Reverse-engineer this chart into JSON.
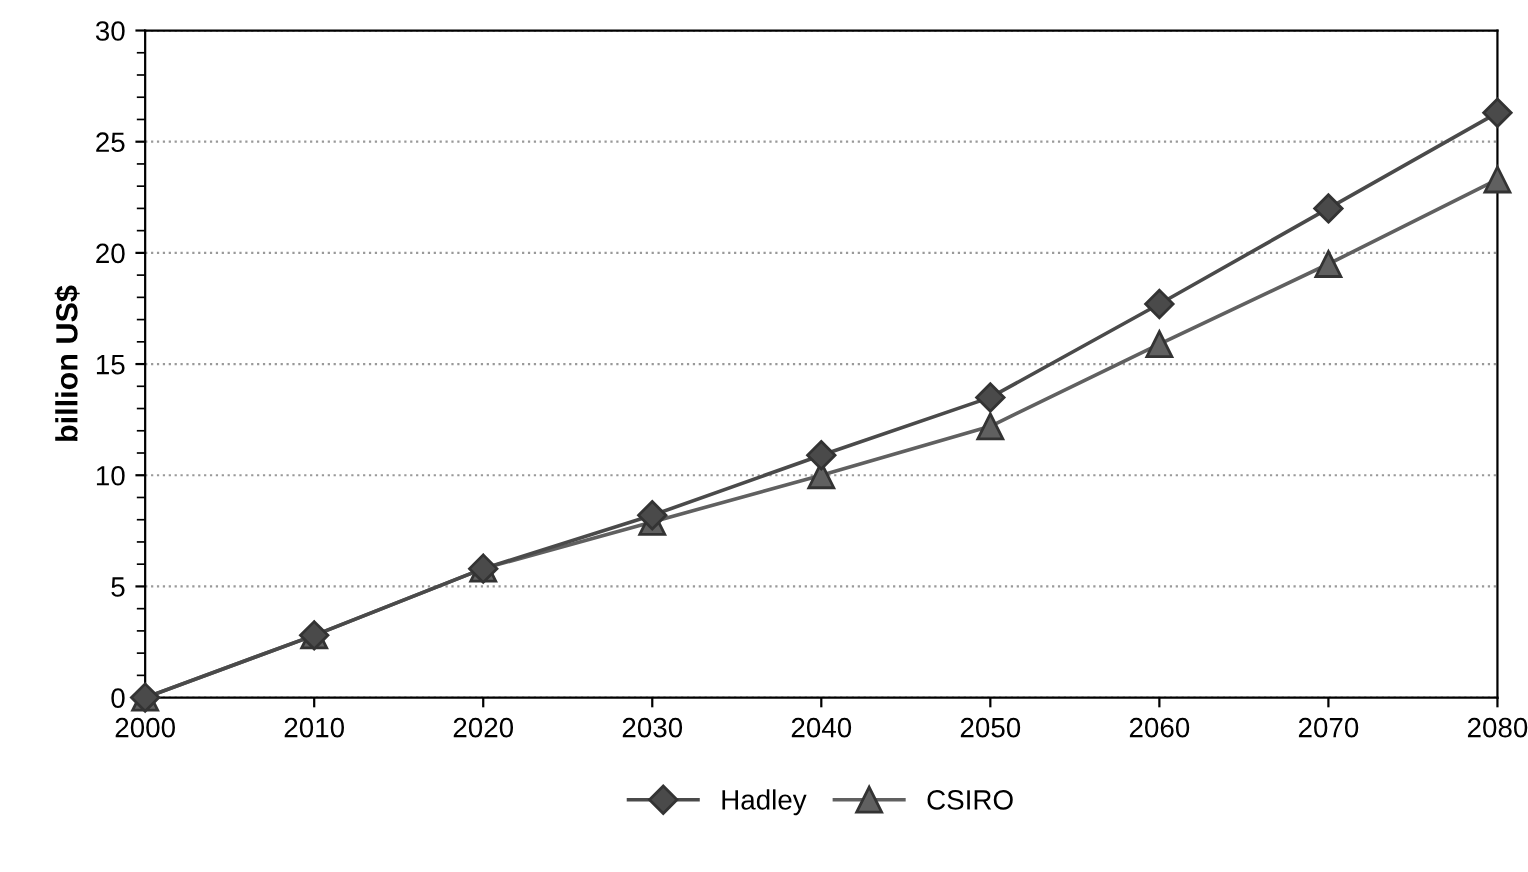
{
  "chart_data": {
    "type": "line",
    "ylabel": "billion US$",
    "x": [
      2000,
      2010,
      2020,
      2030,
      2040,
      2050,
      2060,
      2070,
      2080
    ],
    "xlim": [
      2000,
      2080
    ],
    "xticks": [
      2000,
      2010,
      2020,
      2030,
      2040,
      2050,
      2060,
      2070,
      2080
    ],
    "ylim": [
      0,
      30
    ],
    "yticks": [
      0,
      5,
      10,
      15,
      20,
      25,
      30
    ],
    "grid": "y",
    "legend": "bottom",
    "series": [
      {
        "name": "Hadley",
        "color": "#4a4a4a",
        "marker": "diamond",
        "values": [
          0,
          2.8,
          5.8,
          8.2,
          10.9,
          13.5,
          17.7,
          22.0,
          26.3
        ]
      },
      {
        "name": "CSIRO",
        "color": "#606060",
        "marker": "triangle",
        "values": [
          0,
          2.8,
          5.8,
          7.9,
          10.0,
          12.2,
          15.9,
          19.5,
          23.3
        ]
      }
    ]
  }
}
